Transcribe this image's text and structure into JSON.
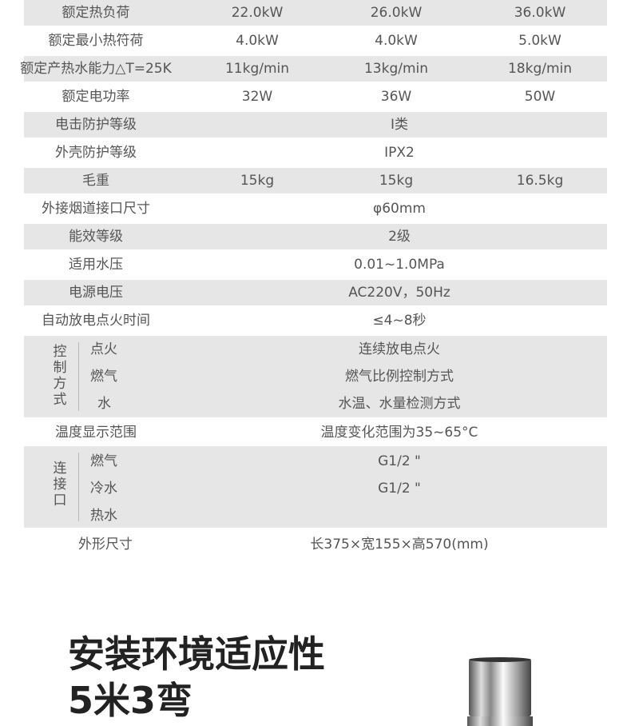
{
  "rows": [
    {
      "label": "额定热负荷",
      "v": [
        "22.0kW",
        "26.0kW",
        "36.0kW"
      ]
    },
    {
      "label": "额定最小热符荷",
      "v": [
        "4.0kW",
        "4.0kW",
        "5.0kW"
      ]
    },
    {
      "label": "额定产热水能力△T=25K",
      "v": [
        "11kg/min",
        "13kg/min",
        "18kg/min"
      ]
    },
    {
      "label": "额定电功率",
      "v": [
        "32W",
        "36W",
        "50W"
      ]
    },
    {
      "label": "电击防护等级",
      "m": "Ⅰ类"
    },
    {
      "label": "外壳防护等级",
      "m": "IPX2"
    },
    {
      "label": "毛重",
      "v": [
        "15kg",
        "15kg",
        "16.5kg"
      ]
    },
    {
      "label": "外接烟道接口尺寸",
      "m": "φ60mm"
    },
    {
      "label": "能效等级",
      "m": "2级"
    },
    {
      "label": "适用水压",
      "m": "0.01~1.0MPa"
    },
    {
      "label": "电源电压",
      "m": "AC220V，50Hz"
    },
    {
      "label": "自动放电点火时间",
      "m": "≤4~8秒"
    }
  ],
  "control": {
    "label": "控制方式",
    "items": [
      {
        "k": "点火",
        "v": "连续放电点火"
      },
      {
        "k": "燃气",
        "v": "燃气比例控制方式"
      },
      {
        "k": "水",
        "v": "水温、水量检测方式"
      }
    ]
  },
  "temp": {
    "label": "温度显示范围",
    "v": "温度变化范围为35~65°C"
  },
  "connect": {
    "label": "连接口",
    "items": [
      {
        "k": "燃气",
        "v": "G1/2 \""
      },
      {
        "k": "冷水",
        "v": "G1/2 \""
      },
      {
        "k": "热水",
        "v": ""
      }
    ]
  },
  "size": {
    "label": "外形尺寸",
    "v": "长375×宽155×高570(mm)"
  },
  "heading": {
    "line1": "安装环境适应性",
    "line2": "5米3弯"
  }
}
